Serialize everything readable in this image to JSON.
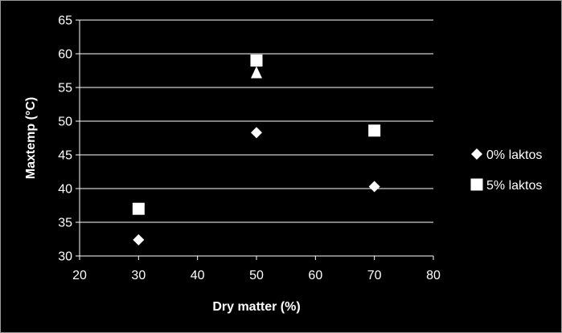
{
  "chart_data": {
    "type": "scatter",
    "title": "",
    "xlabel": "Dry matter (%)",
    "ylabel": "Maxtemp (°C)",
    "xlim": [
      20,
      80
    ],
    "ylim": [
      30,
      65
    ],
    "xticks": [
      20,
      30,
      40,
      50,
      60,
      70,
      80
    ],
    "yticks": [
      30,
      35,
      40,
      45,
      50,
      55,
      60,
      65
    ],
    "grid": "horizontal",
    "legend_position": "right",
    "colors": {
      "background": "#000000",
      "foreground": "#ffffff",
      "grid": "#ffffff"
    },
    "series": [
      {
        "name": "0% laktos",
        "marker": "diamond",
        "points": [
          {
            "x": 30,
            "y": 32.4
          },
          {
            "x": 50,
            "y": 48.3
          },
          {
            "x": 70,
            "y": 40.3
          }
        ]
      },
      {
        "name": "5% laktos",
        "marker": "square",
        "points": [
          {
            "x": 30,
            "y": 37.0
          },
          {
            "x": 50,
            "y": 59.0
          },
          {
            "x": 70,
            "y": 48.6
          }
        ]
      },
      {
        "name": "",
        "marker": "triangle",
        "show_in_legend": false,
        "points": [
          {
            "x": 50,
            "y": 57.2
          }
        ]
      }
    ]
  }
}
